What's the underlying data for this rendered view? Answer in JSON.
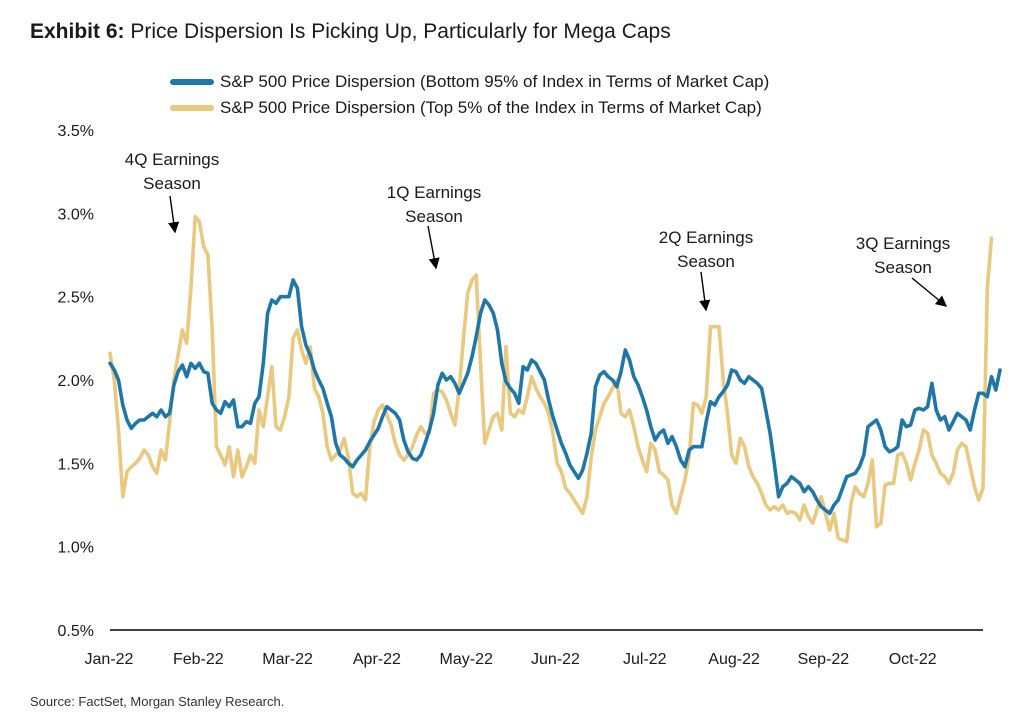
{
  "header": {
    "exhibit_label": "Exhibit 6:",
    "title": "Price Dispersion Is Picking Up, Particularly for Mega Caps"
  },
  "source": "Source: FactSet, Morgan Stanley Research.",
  "colors": {
    "bottom95": "#1f77a8",
    "top5": "#e8c97f",
    "axis": "#000000",
    "annotation": "#000000"
  },
  "chart_data": {
    "type": "line",
    "title": "Price Dispersion Is Picking Up, Particularly for Mega Caps",
    "ylabel": "",
    "xlabel": "",
    "ylim": [
      0.5,
      3.5
    ],
    "y_ticks": [
      "0.5%",
      "1.0%",
      "1.5%",
      "2.0%",
      "2.5%",
      "3.0%",
      "3.5%"
    ],
    "y_tick_values": [
      0.5,
      1.0,
      1.5,
      2.0,
      2.5,
      3.0,
      3.5
    ],
    "x_tick_labels": [
      "Jan-22",
      "Feb-22",
      "Mar-22",
      "Apr-22",
      "May-22",
      "Jun-22",
      "Jul-22",
      "Aug-22",
      "Sep-22",
      "Oct-22"
    ],
    "x_range": [
      0,
      205
    ],
    "grid": false,
    "legend_position": "top-center",
    "series": [
      {
        "name": "S&P 500 Price Dispersion (Bottom 95% of Index in Terms of Market Cap)",
        "color": "#1f77a8",
        "values": [
          2.1,
          2.06,
          2.0,
          1.85,
          1.76,
          1.71,
          1.74,
          1.76,
          1.76,
          1.78,
          1.8,
          1.78,
          1.82,
          1.78,
          1.8,
          1.97,
          2.05,
          2.09,
          2.02,
          2.1,
          2.07,
          2.1,
          2.05,
          2.04,
          1.86,
          1.82,
          1.8,
          1.87,
          1.84,
          1.88,
          1.72,
          1.72,
          1.75,
          1.74,
          1.86,
          1.9,
          2.1,
          2.4,
          2.48,
          2.46,
          2.5,
          2.5,
          2.5,
          2.6,
          2.55,
          2.32,
          2.21,
          2.15,
          2.06,
          2.0,
          1.95,
          1.86,
          1.78,
          1.62,
          1.55,
          1.53,
          1.5,
          1.48,
          1.52,
          1.55,
          1.58,
          1.63,
          1.67,
          1.71,
          1.78,
          1.84,
          1.82,
          1.8,
          1.76,
          1.64,
          1.57,
          1.53,
          1.52,
          1.55,
          1.62,
          1.7,
          1.8,
          1.97,
          2.04,
          2.0,
          2.02,
          1.98,
          1.92,
          1.98,
          2.04,
          2.14,
          2.26,
          2.4,
          2.48,
          2.45,
          2.4,
          2.3,
          2.1,
          1.99,
          1.95,
          1.92,
          1.86,
          2.08,
          2.06,
          2.12,
          2.1,
          2.05,
          2.0,
          1.88,
          1.78,
          1.7,
          1.62,
          1.56,
          1.49,
          1.45,
          1.41,
          1.46,
          1.56,
          1.68,
          1.96,
          2.03,
          2.05,
          2.02,
          2.0,
          1.96,
          2.05,
          2.18,
          2.12,
          2.02,
          1.97,
          1.9,
          1.82,
          1.72,
          1.64,
          1.68,
          1.7,
          1.62,
          1.66,
          1.6,
          1.52,
          1.48,
          1.58,
          1.6,
          1.6,
          1.6,
          1.75,
          1.87,
          1.85,
          1.9,
          1.93,
          1.97,
          2.06,
          2.05,
          2.0,
          1.98,
          2.02,
          2.0,
          1.98,
          1.95,
          1.82,
          1.68,
          1.5,
          1.3,
          1.36,
          1.38,
          1.42,
          1.4,
          1.38,
          1.33,
          1.36,
          1.33,
          1.28,
          1.24,
          1.22,
          1.2,
          1.25,
          1.28,
          1.35,
          1.42,
          1.43,
          1.44,
          1.48,
          1.55,
          1.72,
          1.74,
          1.76,
          1.7,
          1.6,
          1.57,
          1.58,
          1.6,
          1.76,
          1.72,
          1.73,
          1.82,
          1.83,
          1.82,
          1.84,
          1.98,
          1.82,
          1.76,
          1.78,
          1.7,
          1.75,
          1.8,
          1.78,
          1.76,
          1.7,
          1.82,
          1.92,
          1.92,
          1.9,
          2.02,
          1.94,
          2.06
        ]
      },
      {
        "name": "S&P 500 Price Dispersion (Top 5% of the Index in Terms of Market Cap)",
        "color": "#e8c97f",
        "values": [
          2.16,
          2.0,
          1.7,
          1.3,
          1.45,
          1.48,
          1.5,
          1.53,
          1.58,
          1.55,
          1.48,
          1.44,
          1.58,
          1.52,
          1.75,
          2.0,
          2.15,
          2.3,
          2.22,
          2.55,
          2.98,
          2.95,
          2.8,
          2.75,
          2.3,
          1.6,
          1.55,
          1.49,
          1.6,
          1.42,
          1.58,
          1.42,
          1.48,
          1.55,
          1.5,
          1.82,
          1.72,
          1.9,
          2.08,
          1.72,
          1.7,
          1.78,
          1.9,
          2.25,
          2.3,
          2.18,
          2.1,
          2.2,
          1.95,
          1.9,
          1.8,
          1.6,
          1.52,
          1.55,
          1.58,
          1.65,
          1.53,
          1.32,
          1.3,
          1.32,
          1.28,
          1.6,
          1.75,
          1.82,
          1.85,
          1.79,
          1.73,
          1.62,
          1.55,
          1.52,
          1.55,
          1.6,
          1.67,
          1.72,
          1.68,
          1.68,
          1.92,
          1.94,
          1.93,
          1.88,
          1.8,
          1.73,
          1.95,
          2.25,
          2.52,
          2.6,
          2.63,
          2.1,
          1.62,
          1.7,
          1.78,
          1.8,
          1.7,
          2.2,
          1.8,
          1.78,
          1.82,
          1.8,
          1.9,
          2.02,
          1.95,
          1.9,
          1.86,
          1.8,
          1.68,
          1.5,
          1.45,
          1.35,
          1.32,
          1.28,
          1.24,
          1.2,
          1.3,
          1.54,
          1.7,
          1.78,
          1.86,
          1.9,
          1.95,
          2.0,
          1.8,
          1.78,
          1.82,
          1.72,
          1.6,
          1.52,
          1.45,
          1.62,
          1.58,
          1.45,
          1.43,
          1.4,
          1.25,
          1.2,
          1.3,
          1.4,
          1.54,
          1.86,
          1.85,
          1.8,
          1.9,
          2.32,
          2.32,
          2.32,
          2.0,
          1.8,
          1.55,
          1.5,
          1.65,
          1.6,
          1.48,
          1.42,
          1.38,
          1.32,
          1.25,
          1.22,
          1.24,
          1.22,
          1.25,
          1.2,
          1.21,
          1.2,
          1.16,
          1.25,
          1.18,
          1.14,
          1.22,
          1.3,
          1.2,
          1.1,
          1.2,
          1.05,
          1.04,
          1.03,
          1.26,
          1.36,
          1.32,
          1.3,
          1.38,
          1.52,
          1.12,
          1.14,
          1.37,
          1.38,
          1.38,
          1.55,
          1.56,
          1.5,
          1.4,
          1.5,
          1.58,
          1.7,
          1.68,
          1.55,
          1.5,
          1.44,
          1.42,
          1.38,
          1.44,
          1.58,
          1.62,
          1.6,
          1.48,
          1.36,
          1.28,
          1.35,
          2.55,
          2.85
        ]
      }
    ],
    "annotations": [
      {
        "lines": [
          "4Q Earnings",
          "Season"
        ],
        "date_index": 14,
        "value": 2.9
      },
      {
        "lines": [
          "1Q Earnings",
          "Season"
        ],
        "date_index": 76,
        "value": 2.6
      },
      {
        "lines": [
          "2Q Earnings",
          "Season"
        ],
        "date_index": 141,
        "value": 2.33
      },
      {
        "lines": [
          "3Q Earnings",
          "Season"
        ],
        "date_index": 196,
        "value": 2.45
      }
    ]
  }
}
